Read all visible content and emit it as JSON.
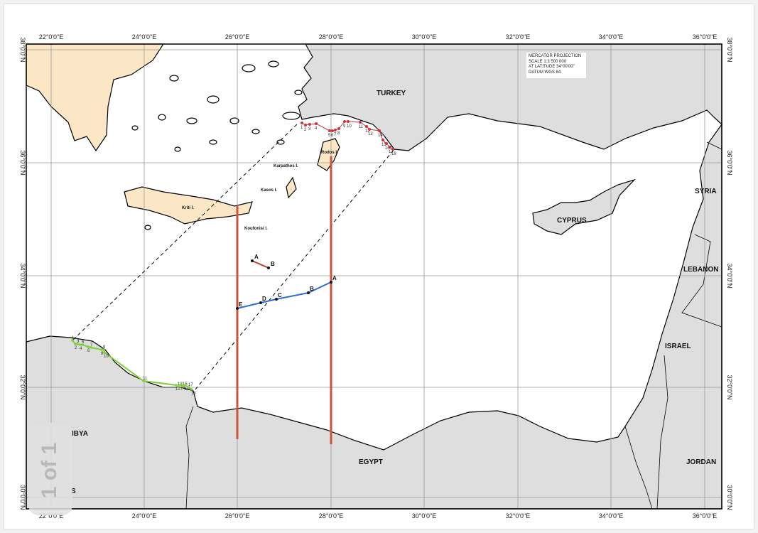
{
  "map_info": {
    "projection": "MERCATOR PROJECTION",
    "scale": "SCALE 1:3 500 000",
    "latitude": "AT LATITUDE 34°00'00\"",
    "datum": "DATUM WGS 84"
  },
  "longitude_ticks": [
    "22°0'0\"E",
    "24°0'0\"E",
    "26°0'0\"E",
    "28°0'0\"E",
    "30°0'0\"E",
    "32°0'0\"E",
    "34°0'0\"E",
    "36°0'0\"E"
  ],
  "latitude_ticks": [
    "38°0'0\"N",
    "36°0'0\"N",
    "34°0'0\"N",
    "32°0'0\"N",
    "30°0'0\"N"
  ],
  "countries": {
    "turkey": "TURKEY",
    "cyprus": "CYPRUS",
    "syria": "SYRIA",
    "lebanon": "LEBANON",
    "israel": "ISRAEL",
    "jordan": "JORDAN",
    "egypt": "EGYPT",
    "libya": "IBYA",
    "partial_s": "S"
  },
  "islands": {
    "kriti": "Kriti I.",
    "kasos": "Kasos I.",
    "karpathos": "Karpathos I.",
    "rodos": "Rodos I.",
    "koufonisi": "Koufonisi I."
  },
  "turkey_points": [
    "1",
    "2",
    "3",
    "4",
    "5",
    "6",
    "7",
    "8",
    "9",
    "10",
    "11",
    "12",
    "13",
    "14",
    "15",
    "16",
    "17",
    "18"
  ],
  "libya_points": [
    "1",
    "2",
    "3",
    "4",
    "5",
    "6",
    "7",
    "8",
    "9",
    "10",
    "11",
    "12",
    "13",
    "14",
    "15",
    "16",
    "17",
    "18"
  ],
  "blue_line_points": [
    "A",
    "B",
    "C",
    "D",
    "E"
  ],
  "red_segment_points": [
    "A",
    "B"
  ],
  "colors": {
    "land": "#dedede",
    "greece": "#fbe7c6",
    "sea": "#ffffff",
    "meridian_line": "#c9553f",
    "blue_line": "#2f6fd0",
    "turkey_points": "#d0343a",
    "libya_points": "#7ed03a"
  },
  "viewer": {
    "page_indicator": "1 of 1"
  }
}
